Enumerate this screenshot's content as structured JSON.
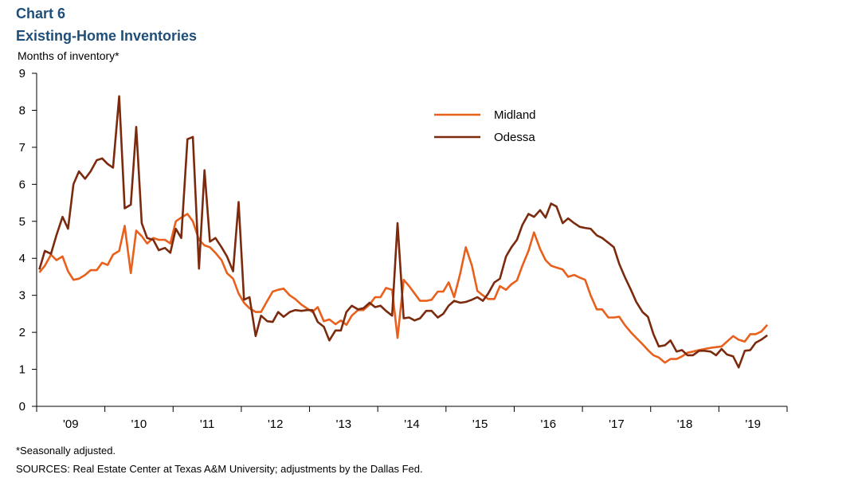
{
  "header": {
    "chart_number": "Chart 6",
    "title": "Existing-Home Inventories",
    "ylabel": "Months of inventory*"
  },
  "footer": {
    "note": "*Seasonally adjusted.",
    "source": "SOURCES: Real Estate Center at Texas A&M University; adjustments by the Dallas Fed."
  },
  "chart_data": {
    "type": "line",
    "title": "Existing-Home Inventories",
    "ylabel": "Months of inventory*",
    "xlabel": "",
    "ylim": [
      0,
      9
    ],
    "yticks": [
      0,
      1,
      2,
      3,
      4,
      5,
      6,
      7,
      8,
      9
    ],
    "xlim": [
      2009.0,
      2020.0
    ],
    "xticks": [
      {
        "label": "'09",
        "x": 2009.5
      },
      {
        "label": "'10",
        "x": 2010.5
      },
      {
        "label": "'11",
        "x": 2011.5
      },
      {
        "label": "'12",
        "x": 2012.5
      },
      {
        "label": "'13",
        "x": 2013.5
      },
      {
        "label": "'14",
        "x": 2014.5
      },
      {
        "label": "'15",
        "x": 2015.5
      },
      {
        "label": "'16",
        "x": 2016.5
      },
      {
        "label": "'17",
        "x": 2017.5
      },
      {
        "label": "'18",
        "x": 2018.5
      },
      {
        "label": "'19",
        "x": 2019.5
      }
    ],
    "grid": false,
    "legend_position": "top-center",
    "series": [
      {
        "name": "Midland",
        "color": "#e8601c",
        "points": [
          [
            2009.04,
            3.62
          ],
          [
            2009.12,
            3.8
          ],
          [
            2009.21,
            4.1
          ],
          [
            2009.29,
            3.95
          ],
          [
            2009.38,
            4.05
          ],
          [
            2009.46,
            3.65
          ],
          [
            2009.54,
            3.42
          ],
          [
            2009.62,
            3.45
          ],
          [
            2009.71,
            3.55
          ],
          [
            2009.79,
            3.68
          ],
          [
            2009.88,
            3.68
          ],
          [
            2009.96,
            3.88
          ],
          [
            2010.04,
            3.82
          ],
          [
            2010.12,
            4.1
          ],
          [
            2010.21,
            4.2
          ],
          [
            2010.29,
            4.88
          ],
          [
            2010.38,
            3.6
          ],
          [
            2010.46,
            4.75
          ],
          [
            2010.54,
            4.6
          ],
          [
            2010.62,
            4.4
          ],
          [
            2010.71,
            4.55
          ],
          [
            2010.79,
            4.5
          ],
          [
            2010.88,
            4.5
          ],
          [
            2010.96,
            4.4
          ],
          [
            2011.04,
            5.0
          ],
          [
            2011.12,
            5.1
          ],
          [
            2011.21,
            5.2
          ],
          [
            2011.29,
            5.0
          ],
          [
            2011.38,
            4.5
          ],
          [
            2011.46,
            4.35
          ],
          [
            2011.54,
            4.3
          ],
          [
            2011.62,
            4.15
          ],
          [
            2011.71,
            3.95
          ],
          [
            2011.79,
            3.6
          ],
          [
            2011.88,
            3.45
          ],
          [
            2011.96,
            3.05
          ],
          [
            2012.04,
            2.8
          ],
          [
            2012.12,
            2.65
          ],
          [
            2012.21,
            2.55
          ],
          [
            2012.29,
            2.55
          ],
          [
            2012.38,
            2.85
          ],
          [
            2012.46,
            3.1
          ],
          [
            2012.54,
            3.15
          ],
          [
            2012.62,
            3.18
          ],
          [
            2012.71,
            3.0
          ],
          [
            2012.79,
            2.9
          ],
          [
            2012.88,
            2.75
          ],
          [
            2012.96,
            2.65
          ],
          [
            2013.04,
            2.55
          ],
          [
            2013.12,
            2.68
          ],
          [
            2013.21,
            2.3
          ],
          [
            2013.29,
            2.35
          ],
          [
            2013.38,
            2.22
          ],
          [
            2013.46,
            2.32
          ],
          [
            2013.54,
            2.2
          ],
          [
            2013.62,
            2.45
          ],
          [
            2013.71,
            2.6
          ],
          [
            2013.79,
            2.6
          ],
          [
            2013.88,
            2.75
          ],
          [
            2013.96,
            2.95
          ],
          [
            2014.04,
            2.95
          ],
          [
            2014.12,
            3.2
          ],
          [
            2014.21,
            3.15
          ],
          [
            2014.29,
            1.85
          ],
          [
            2014.38,
            3.42
          ],
          [
            2014.46,
            3.25
          ],
          [
            2014.54,
            3.05
          ],
          [
            2014.62,
            2.85
          ],
          [
            2014.71,
            2.85
          ],
          [
            2014.79,
            2.88
          ],
          [
            2014.88,
            3.1
          ],
          [
            2014.96,
            3.1
          ],
          [
            2015.04,
            3.35
          ],
          [
            2015.12,
            2.95
          ],
          [
            2015.21,
            3.6
          ],
          [
            2015.29,
            4.3
          ],
          [
            2015.38,
            3.8
          ],
          [
            2015.46,
            3.12
          ],
          [
            2015.54,
            3.0
          ],
          [
            2015.62,
            2.9
          ],
          [
            2015.71,
            2.9
          ],
          [
            2015.79,
            3.25
          ],
          [
            2015.88,
            3.15
          ],
          [
            2015.96,
            3.3
          ],
          [
            2016.04,
            3.4
          ],
          [
            2016.12,
            3.8
          ],
          [
            2016.21,
            4.2
          ],
          [
            2016.29,
            4.7
          ],
          [
            2016.38,
            4.25
          ],
          [
            2016.46,
            3.95
          ],
          [
            2016.54,
            3.8
          ],
          [
            2016.62,
            3.75
          ],
          [
            2016.71,
            3.7
          ],
          [
            2016.79,
            3.5
          ],
          [
            2016.88,
            3.55
          ],
          [
            2016.96,
            3.48
          ],
          [
            2017.04,
            3.42
          ],
          [
            2017.12,
            3.0
          ],
          [
            2017.21,
            2.62
          ],
          [
            2017.29,
            2.62
          ],
          [
            2017.38,
            2.4
          ],
          [
            2017.46,
            2.4
          ],
          [
            2017.54,
            2.42
          ],
          [
            2017.62,
            2.2
          ],
          [
            2017.71,
            2.0
          ],
          [
            2017.79,
            1.85
          ],
          [
            2017.88,
            1.68
          ],
          [
            2017.96,
            1.52
          ],
          [
            2018.04,
            1.38
          ],
          [
            2018.12,
            1.32
          ],
          [
            2018.21,
            1.18
          ],
          [
            2018.29,
            1.28
          ],
          [
            2018.38,
            1.28
          ],
          [
            2018.46,
            1.35
          ],
          [
            2018.54,
            1.45
          ],
          [
            2018.62,
            1.48
          ],
          [
            2018.71,
            1.52
          ],
          [
            2018.79,
            1.55
          ],
          [
            2018.88,
            1.58
          ],
          [
            2018.96,
            1.6
          ],
          [
            2019.04,
            1.62
          ],
          [
            2019.12,
            1.75
          ],
          [
            2019.21,
            1.9
          ],
          [
            2019.29,
            1.8
          ],
          [
            2019.38,
            1.75
          ],
          [
            2019.46,
            1.95
          ],
          [
            2019.54,
            1.95
          ],
          [
            2019.62,
            2.02
          ],
          [
            2019.71,
            2.2
          ]
        ]
      },
      {
        "name": "Odessa",
        "color": "#7b2a0e",
        "points": [
          [
            2009.04,
            3.7
          ],
          [
            2009.12,
            4.2
          ],
          [
            2009.21,
            4.12
          ],
          [
            2009.29,
            4.62
          ],
          [
            2009.38,
            5.12
          ],
          [
            2009.46,
            4.8
          ],
          [
            2009.54,
            6.0
          ],
          [
            2009.62,
            6.35
          ],
          [
            2009.71,
            6.15
          ],
          [
            2009.79,
            6.35
          ],
          [
            2009.88,
            6.65
          ],
          [
            2009.96,
            6.7
          ],
          [
            2010.04,
            6.55
          ],
          [
            2010.12,
            6.45
          ],
          [
            2010.21,
            8.38
          ],
          [
            2010.29,
            5.35
          ],
          [
            2010.38,
            5.45
          ],
          [
            2010.46,
            7.55
          ],
          [
            2010.54,
            4.95
          ],
          [
            2010.62,
            4.55
          ],
          [
            2010.71,
            4.5
          ],
          [
            2010.79,
            4.22
          ],
          [
            2010.88,
            4.28
          ],
          [
            2010.96,
            4.15
          ],
          [
            2011.04,
            4.8
          ],
          [
            2011.12,
            4.55
          ],
          [
            2011.21,
            7.22
          ],
          [
            2011.29,
            7.28
          ],
          [
            2011.38,
            3.72
          ],
          [
            2011.46,
            6.38
          ],
          [
            2011.54,
            4.45
          ],
          [
            2011.62,
            4.55
          ],
          [
            2011.71,
            4.3
          ],
          [
            2011.79,
            4.05
          ],
          [
            2011.88,
            3.65
          ],
          [
            2011.96,
            5.52
          ],
          [
            2012.04,
            2.88
          ],
          [
            2012.12,
            2.95
          ],
          [
            2012.21,
            1.9
          ],
          [
            2012.29,
            2.45
          ],
          [
            2012.38,
            2.3
          ],
          [
            2012.46,
            2.28
          ],
          [
            2012.54,
            2.55
          ],
          [
            2012.62,
            2.42
          ],
          [
            2012.71,
            2.55
          ],
          [
            2012.79,
            2.6
          ],
          [
            2012.88,
            2.58
          ],
          [
            2012.96,
            2.6
          ],
          [
            2013.04,
            2.6
          ],
          [
            2013.12,
            2.28
          ],
          [
            2013.21,
            2.15
          ],
          [
            2013.29,
            1.78
          ],
          [
            2013.38,
            2.05
          ],
          [
            2013.46,
            2.05
          ],
          [
            2013.54,
            2.55
          ],
          [
            2013.62,
            2.72
          ],
          [
            2013.71,
            2.62
          ],
          [
            2013.79,
            2.65
          ],
          [
            2013.88,
            2.8
          ],
          [
            2013.96,
            2.68
          ],
          [
            2014.04,
            2.72
          ],
          [
            2014.12,
            2.58
          ],
          [
            2014.21,
            2.45
          ],
          [
            2014.29,
            4.95
          ],
          [
            2014.38,
            2.38
          ],
          [
            2014.46,
            2.4
          ],
          [
            2014.54,
            2.32
          ],
          [
            2014.62,
            2.38
          ],
          [
            2014.71,
            2.58
          ],
          [
            2014.79,
            2.58
          ],
          [
            2014.88,
            2.4
          ],
          [
            2014.96,
            2.5
          ],
          [
            2015.04,
            2.72
          ],
          [
            2015.12,
            2.85
          ],
          [
            2015.21,
            2.8
          ],
          [
            2015.29,
            2.82
          ],
          [
            2015.38,
            2.88
          ],
          [
            2015.46,
            2.95
          ],
          [
            2015.54,
            2.85
          ],
          [
            2015.62,
            3.05
          ],
          [
            2015.71,
            3.35
          ],
          [
            2015.79,
            3.45
          ],
          [
            2015.88,
            4.05
          ],
          [
            2015.96,
            4.3
          ],
          [
            2016.04,
            4.5
          ],
          [
            2016.12,
            4.9
          ],
          [
            2016.21,
            5.2
          ],
          [
            2016.29,
            5.12
          ],
          [
            2016.38,
            5.3
          ],
          [
            2016.46,
            5.1
          ],
          [
            2016.54,
            5.48
          ],
          [
            2016.62,
            5.4
          ],
          [
            2016.71,
            4.95
          ],
          [
            2016.79,
            5.08
          ],
          [
            2016.88,
            4.95
          ],
          [
            2016.96,
            4.85
          ],
          [
            2017.04,
            4.82
          ],
          [
            2017.12,
            4.8
          ],
          [
            2017.21,
            4.62
          ],
          [
            2017.29,
            4.55
          ],
          [
            2017.38,
            4.42
          ],
          [
            2017.46,
            4.3
          ],
          [
            2017.54,
            3.85
          ],
          [
            2017.62,
            3.5
          ],
          [
            2017.71,
            3.15
          ],
          [
            2017.79,
            2.82
          ],
          [
            2017.88,
            2.55
          ],
          [
            2017.96,
            2.42
          ],
          [
            2018.04,
            1.95
          ],
          [
            2018.12,
            1.62
          ],
          [
            2018.21,
            1.65
          ],
          [
            2018.29,
            1.78
          ],
          [
            2018.38,
            1.48
          ],
          [
            2018.46,
            1.52
          ],
          [
            2018.54,
            1.38
          ],
          [
            2018.62,
            1.38
          ],
          [
            2018.71,
            1.5
          ],
          [
            2018.79,
            1.5
          ],
          [
            2018.88,
            1.48
          ],
          [
            2018.96,
            1.38
          ],
          [
            2019.04,
            1.55
          ],
          [
            2019.12,
            1.4
          ],
          [
            2019.21,
            1.35
          ],
          [
            2019.29,
            1.05
          ],
          [
            2019.38,
            1.5
          ],
          [
            2019.46,
            1.52
          ],
          [
            2019.54,
            1.72
          ],
          [
            2019.62,
            1.8
          ],
          [
            2019.71,
            1.92
          ]
        ]
      }
    ]
  }
}
